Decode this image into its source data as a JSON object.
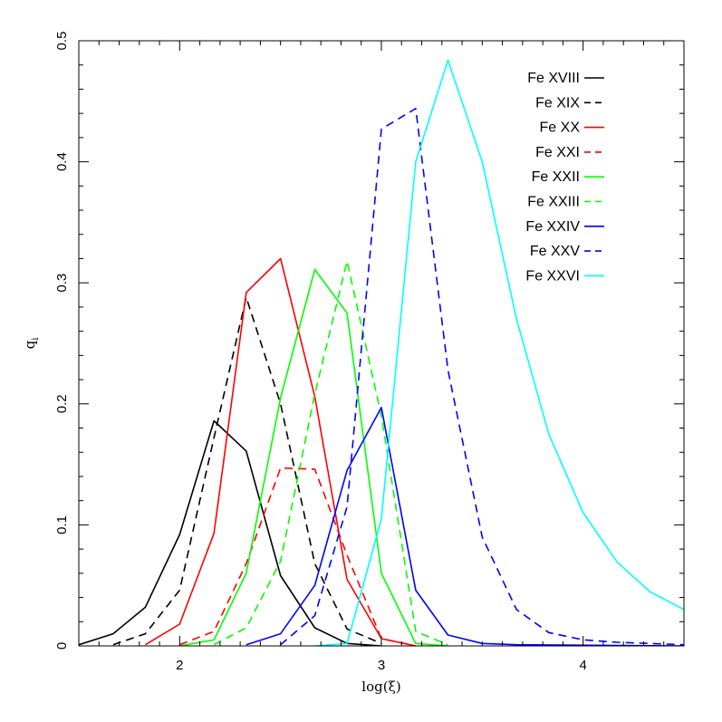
{
  "chart_data": {
    "type": "line",
    "xlabel": "log(ξ)",
    "ylabel": "q",
    "ylabel_sub": "i",
    "xlim": [
      1.5,
      4.5
    ],
    "ylim": [
      0,
      0.5
    ],
    "x_ticks": [
      2,
      3,
      4
    ],
    "x_tick_labels": [
      "2",
      "3",
      "4"
    ],
    "y_ticks": [
      0,
      0.1,
      0.2,
      0.3,
      0.4,
      0.5
    ],
    "y_tick_labels": [
      "0",
      "0.1",
      "0.2",
      "0.3",
      "0.4",
      "0.5"
    ],
    "grid": false,
    "legend_position": "top-right",
    "series": [
      {
        "name": "Fe XVIII",
        "color": "#000000",
        "dash": "solid",
        "x": [
          1.5,
          1.67,
          1.83,
          2.0,
          2.17,
          2.33,
          2.5,
          2.67,
          2.83,
          3.0
        ],
        "y": [
          0.001,
          0.01,
          0.032,
          0.092,
          0.186,
          0.161,
          0.058,
          0.015,
          0.002,
          0.0
        ]
      },
      {
        "name": "Fe XIX",
        "color": "#000000",
        "dash": "dashed",
        "x": [
          1.67,
          1.83,
          2.0,
          2.17,
          2.33,
          2.5,
          2.67,
          2.83,
          3.0
        ],
        "y": [
          0.001,
          0.01,
          0.046,
          0.172,
          0.288,
          0.2,
          0.068,
          0.014,
          0.002
        ]
      },
      {
        "name": "Fe XX",
        "color": "#ff0000",
        "dash": "solid",
        "x": [
          1.83,
          2.0,
          2.17,
          2.33,
          2.5,
          2.67,
          2.83,
          3.0,
          3.17
        ],
        "y": [
          0.001,
          0.018,
          0.093,
          0.292,
          0.32,
          0.206,
          0.055,
          0.006,
          0.0
        ]
      },
      {
        "name": "Fe XXI",
        "color": "#ff0000",
        "dash": "dashed",
        "x": [
          2.0,
          2.17,
          2.33,
          2.5,
          2.67,
          2.83,
          3.0,
          3.17
        ],
        "y": [
          0.001,
          0.012,
          0.068,
          0.147,
          0.146,
          0.075,
          0.006,
          0.0
        ]
      },
      {
        "name": "Fe XXII",
        "color": "#00ff00",
        "dash": "solid",
        "x": [
          2.0,
          2.17,
          2.33,
          2.5,
          2.67,
          2.83,
          3.0,
          3.17,
          3.33
        ],
        "y": [
          0.0,
          0.005,
          0.06,
          0.205,
          0.311,
          0.275,
          0.06,
          0.002,
          0.0
        ]
      },
      {
        "name": "Fe XXIII",
        "color": "#00ff00",
        "dash": "dashed",
        "x": [
          2.17,
          2.33,
          2.5,
          2.67,
          2.83,
          3.0,
          3.17,
          3.33
        ],
        "y": [
          0.001,
          0.015,
          0.07,
          0.208,
          0.318,
          0.19,
          0.012,
          0.001
        ]
      },
      {
        "name": "Fe XXIV",
        "color": "#0000ff",
        "dash": "solid",
        "x": [
          2.33,
          2.5,
          2.67,
          2.83,
          3.0,
          3.17,
          3.33,
          3.5,
          3.67,
          4.5
        ],
        "y": [
          0.001,
          0.01,
          0.05,
          0.145,
          0.197,
          0.046,
          0.009,
          0.002,
          0.001,
          0.0
        ]
      },
      {
        "name": "Fe XXV",
        "color": "#0000ff",
        "dash": "dashed",
        "x": [
          2.5,
          2.67,
          2.83,
          3.0,
          3.17,
          3.33,
          3.5,
          3.67,
          3.83,
          4.0,
          4.17,
          4.33,
          4.5
        ],
        "y": [
          0.001,
          0.025,
          0.115,
          0.427,
          0.444,
          0.228,
          0.09,
          0.03,
          0.011,
          0.005,
          0.003,
          0.002,
          0.001
        ]
      },
      {
        "name": "Fe XXVI",
        "color": "#00ffff",
        "dash": "solid",
        "x": [
          2.67,
          2.83,
          3.0,
          3.17,
          3.33,
          3.5,
          3.67,
          3.83,
          4.0,
          4.17,
          4.33,
          4.5
        ],
        "y": [
          0.0,
          0.002,
          0.105,
          0.4,
          0.484,
          0.4,
          0.27,
          0.175,
          0.11,
          0.069,
          0.045,
          0.03
        ]
      }
    ]
  }
}
